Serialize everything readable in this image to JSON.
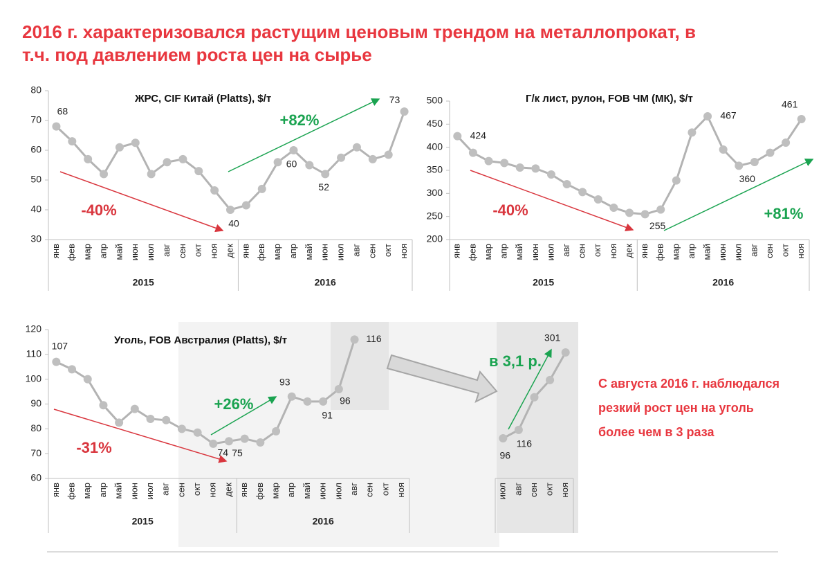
{
  "header": {
    "title": [
      "2016 г. характеризовался растущим ценовым трендом на металлопрокат, в",
      "т.ч. под давлением роста цен на сырье"
    ]
  },
  "note": [
    "С августа 2016 г. наблюдался",
    "резкий рост цен на уголь",
    "более чем в 3 раза"
  ],
  "chart_data": [
    {
      "type": "line",
      "title": "ЖРС, CIF Китай (Platts), $/т",
      "category_groups": [
        {
          "label": "2015",
          "categories": [
            "янв",
            "фев",
            "мар",
            "апр",
            "май",
            "июн",
            "июл",
            "авг",
            "сен",
            "окт",
            "ноя",
            "дек"
          ]
        },
        {
          "label": "2016",
          "categories": [
            "янв",
            "фев",
            "мар",
            "апр",
            "май",
            "июн",
            "июл",
            "авг",
            "сен",
            "окт",
            "ноя"
          ]
        }
      ],
      "values": [
        68,
        63,
        57,
        52,
        61,
        62.5,
        52,
        56,
        57,
        53,
        46.5,
        40,
        41.5,
        47,
        56,
        60,
        55,
        52,
        57.5,
        61,
        57,
        58.5,
        73
      ],
      "value_labels": [
        "68",
        null,
        null,
        null,
        null,
        null,
        null,
        null,
        null,
        null,
        null,
        "40",
        null,
        null,
        null,
        "60",
        null,
        "52",
        null,
        null,
        null,
        null,
        "73"
      ],
      "ylim": [
        30,
        80
      ],
      "yticks": [
        30,
        40,
        50,
        60,
        70,
        80
      ],
      "color": "#b3b3b3",
      "annotations": [
        "-40%",
        "+82%"
      ]
    },
    {
      "type": "line",
      "title": "Г/к лист, рулон, FOB ЧМ (МК), $/т",
      "category_groups": [
        {
          "label": "2015",
          "categories": [
            "янв",
            "фев",
            "мар",
            "апр",
            "май",
            "июн",
            "июл",
            "авг",
            "сен",
            "окт",
            "ноя",
            "дек"
          ]
        },
        {
          "label": "2016",
          "categories": [
            "янв",
            "фев",
            "мар",
            "апр",
            "май",
            "июн",
            "июл",
            "авг",
            "сен",
            "окт",
            "ноя"
          ]
        }
      ],
      "values": [
        424,
        388,
        370,
        366,
        356,
        354,
        341,
        320,
        303,
        287,
        269,
        258,
        255,
        265,
        328,
        432,
        467,
        395,
        360,
        368,
        388,
        410,
        461
      ],
      "value_labels": [
        "424",
        null,
        null,
        null,
        null,
        null,
        null,
        null,
        null,
        null,
        null,
        null,
        "255",
        null,
        null,
        null,
        "467",
        null,
        "360",
        null,
        null,
        null,
        "461"
      ],
      "ylim": [
        200,
        500
      ],
      "yticks": [
        200,
        250,
        300,
        350,
        400,
        450,
        500
      ],
      "color": "#b3b3b3",
      "annotations": [
        "-40%",
        "+81%"
      ]
    },
    {
      "type": "line",
      "title": "Уголь, FOB Австралия (Platts), $/т",
      "category_groups": [
        {
          "label": "2015",
          "categories": [
            "янв",
            "фев",
            "мар",
            "апр",
            "май",
            "июн",
            "июл",
            "авг",
            "сен",
            "окт",
            "ноя",
            "дек"
          ]
        },
        {
          "label": "2016",
          "categories": [
            "янв",
            "фев",
            "мар",
            "апр",
            "май",
            "июн",
            "июл",
            "авг",
            "сен",
            "окт",
            "ноя"
          ]
        }
      ],
      "values": [
        107,
        104,
        100,
        89.5,
        82.5,
        88,
        84,
        83.5,
        80,
        78.5,
        74,
        75,
        76,
        74.5,
        79,
        93,
        91,
        91,
        96,
        116,
        null,
        null,
        null
      ],
      "value_labels": [
        "107",
        null,
        null,
        null,
        null,
        null,
        null,
        null,
        null,
        null,
        "74",
        "75",
        null,
        null,
        null,
        "93",
        null,
        "91",
        "96",
        "116",
        null,
        null,
        null
      ],
      "ylim": [
        60,
        120
      ],
      "yticks": [
        60,
        70,
        80,
        90,
        100,
        110,
        120
      ],
      "color": "#b3b3b3",
      "annotations": [
        "-31%",
        "+26%"
      ]
    },
    {
      "type": "line",
      "categories": [
        "июл",
        "авг",
        "сен",
        "окт",
        "ноя"
      ],
      "values": [
        96,
        116,
        194,
        235,
        301
      ],
      "value_labels": [
        "96",
        "116",
        null,
        null,
        "301"
      ],
      "color": "#b3b3b3",
      "annotations": [
        "в 3,1 р."
      ]
    }
  ]
}
